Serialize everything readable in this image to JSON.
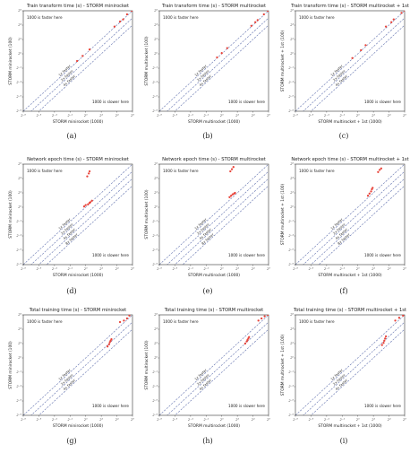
{
  "captions": [
    "(a)",
    "(b)",
    "(c)",
    "(d)",
    "(e)",
    "(f)",
    "(g)",
    "(h)",
    "(i)"
  ],
  "annotations": {
    "above": "1000 is faster here",
    "below": "1000 is slower here"
  },
  "colors": {
    "point": "#e8443a",
    "diagonal": "#5566a8",
    "axis": "#333333"
  },
  "tick_labels": [
    "2⁻⁸",
    "2⁻⁶",
    "2⁻⁴",
    "2⁻²",
    "2⁰",
    "2²",
    "2⁴",
    "2⁶"
  ],
  "chart_data": [
    {
      "type": "scatter",
      "title": "Train transform time (s) - STORM minirocket",
      "xlabel": "STORM minirocket (1000)",
      "ylabel": "STORM minirocket (100)",
      "xlim": [
        -8,
        6
      ],
      "ylim": [
        -8,
        6
      ],
      "log_base": 2,
      "speed_lines": [
        "1x faster",
        "2x faster",
        "4x faster"
      ],
      "points": [
        [
          -1.1,
          -1.0
        ],
        [
          -0.4,
          -0.3
        ],
        [
          0.5,
          0.6
        ],
        [
          3.7,
          3.8
        ],
        [
          4.4,
          4.5
        ],
        [
          4.8,
          4.8
        ],
        [
          5.3,
          5.5
        ],
        [
          5.9,
          6.0
        ]
      ]
    },
    {
      "type": "scatter",
      "title": "Train transform time (s) - STORM multirocket",
      "xlabel": "STORM multirocket (1000)",
      "ylabel": "STORM multirocket (100)",
      "xlim": [
        -8,
        6
      ],
      "ylim": [
        -8,
        6
      ],
      "log_base": 2,
      "speed_lines": [
        "1x faster",
        "2x faster",
        "4x faster"
      ],
      "points": [
        [
          -0.6,
          -0.5
        ],
        [
          0.0,
          0.1
        ],
        [
          0.7,
          0.8
        ],
        [
          3.8,
          3.9
        ],
        [
          4.3,
          4.4
        ],
        [
          4.6,
          4.7
        ],
        [
          5.4,
          5.5
        ],
        [
          5.9,
          6.0
        ]
      ]
    },
    {
      "type": "scatter",
      "title": "Train transform time (s) - STORM multirocket + 1st",
      "xlabel": "STORM multirocket + 1st (1000)",
      "ylabel": "STORM multirocket + 1st (100)",
      "xlim": [
        -8,
        6
      ],
      "ylim": [
        -8,
        6
      ],
      "log_base": 2,
      "speed_lines": [
        "1x faster",
        "2x faster",
        "4x faster"
      ],
      "points": [
        [
          -0.7,
          -0.6
        ],
        [
          0.4,
          0.5
        ],
        [
          1.0,
          1.2
        ],
        [
          3.6,
          3.8
        ],
        [
          4.3,
          4.4
        ],
        [
          4.6,
          4.8
        ],
        [
          5.6,
          5.7
        ],
        [
          6.0,
          6.0
        ]
      ]
    },
    {
      "type": "scatter",
      "title": "Network epoch time (s) - STORM minirocket",
      "xlabel": "STORM minirocket (1000)",
      "ylabel": "STORM minirocket (100)",
      "xlim": [
        -8,
        6
      ],
      "ylim": [
        -8,
        6
      ],
      "log_base": 2,
      "speed_lines": [
        "8x faster",
        "4x faster",
        "2x faster",
        "1x faster"
      ],
      "points": [
        [
          -0.2,
          0.1
        ],
        [
          0.0,
          0.3
        ],
        [
          0.3,
          0.4
        ],
        [
          0.5,
          0.6
        ],
        [
          0.6,
          0.7
        ],
        [
          0.8,
          0.9
        ],
        [
          0.2,
          4.3
        ],
        [
          0.4,
          4.7
        ],
        [
          0.5,
          5.0
        ]
      ]
    },
    {
      "type": "scatter",
      "title": "Network epoch time (s) - STORM multirocket",
      "xlabel": "STORM multirocket (1000)",
      "ylabel": "STORM multirocket (100)",
      "xlim": [
        -8,
        6
      ],
      "ylim": [
        -8,
        6
      ],
      "log_base": 2,
      "speed_lines": [
        "8x faster",
        "4x faster",
        "2x faster",
        "1x faster"
      ],
      "points": [
        [
          1.0,
          1.4
        ],
        [
          1.2,
          1.6
        ],
        [
          1.4,
          1.8
        ],
        [
          1.6,
          1.9
        ],
        [
          1.7,
          2.0
        ],
        [
          1.1,
          5.0
        ],
        [
          1.3,
          5.3
        ],
        [
          1.5,
          5.6
        ]
      ]
    },
    {
      "type": "scatter",
      "title": "Network epoch time (s) - STORM multirocket + 1st",
      "xlabel": "STORM multirocket + 1st (1000)",
      "ylabel": "STORM multirocket + 1st (100)",
      "xlim": [
        -8,
        6
      ],
      "ylim": [
        -8,
        6
      ],
      "log_base": 2,
      "speed_lines": [
        "8x faster",
        "4x faster",
        "2x faster",
        "1x faster"
      ],
      "points": [
        [
          1.3,
          1.6
        ],
        [
          1.5,
          1.9
        ],
        [
          1.7,
          2.2
        ],
        [
          1.8,
          2.5
        ],
        [
          1.9,
          2.7
        ],
        [
          2.6,
          4.9
        ],
        [
          2.8,
          5.2
        ],
        [
          3.0,
          5.4
        ]
      ]
    },
    {
      "type": "scatter",
      "title": "Total training time (s) - STORM minirocket",
      "xlabel": "STORM minirocket (1000)",
      "ylabel": "STORM minirocket (100)",
      "xlim": [
        -8,
        6
      ],
      "ylim": [
        -8,
        6
      ],
      "log_base": 2,
      "speed_lines": [
        "4x faster",
        "2x faster",
        "1x faster"
      ],
      "points": [
        [
          2.8,
          1.6
        ],
        [
          3.0,
          1.9
        ],
        [
          3.1,
          2.2
        ],
        [
          3.2,
          2.4
        ],
        [
          3.3,
          2.6
        ],
        [
          4.4,
          5.0
        ],
        [
          4.9,
          5.2
        ],
        [
          5.3,
          5.5
        ],
        [
          5.6,
          5.9
        ]
      ]
    },
    {
      "type": "scatter",
      "title": "Total training time (s) - STORM multirocket",
      "xlabel": "STORM multirocket (1000)",
      "ylabel": "STORM multirocket (100)",
      "xlim": [
        -8,
        6
      ],
      "ylim": [
        -8,
        6
      ],
      "log_base": 2,
      "speed_lines": [
        "4x faster",
        "2x faster",
        "1x faster"
      ],
      "points": [
        [
          3.0,
          2.0
        ],
        [
          3.2,
          2.3
        ],
        [
          3.3,
          2.5
        ],
        [
          3.4,
          2.7
        ],
        [
          3.5,
          2.9
        ],
        [
          4.7,
          5.2
        ],
        [
          5.1,
          5.5
        ],
        [
          5.5,
          5.8
        ],
        [
          5.9,
          6.0
        ]
      ]
    },
    {
      "type": "scatter",
      "title": "Total training time (s) - STORM multirocket + 1st",
      "xlabel": "STORM multirocket + 1st (1000)",
      "ylabel": "STORM multirocket + 1st (100)",
      "xlim": [
        -8,
        6
      ],
      "ylim": [
        -8,
        6
      ],
      "log_base": 2,
      "speed_lines": [
        "4x faster",
        "2x faster",
        "1x faster"
      ],
      "points": [
        [
          3.1,
          1.8
        ],
        [
          3.3,
          2.1
        ],
        [
          3.4,
          2.4
        ],
        [
          3.5,
          2.7
        ],
        [
          3.6,
          3.0
        ],
        [
          4.8,
          5.2
        ],
        [
          5.3,
          5.6
        ],
        [
          5.8,
          5.9
        ]
      ]
    }
  ]
}
